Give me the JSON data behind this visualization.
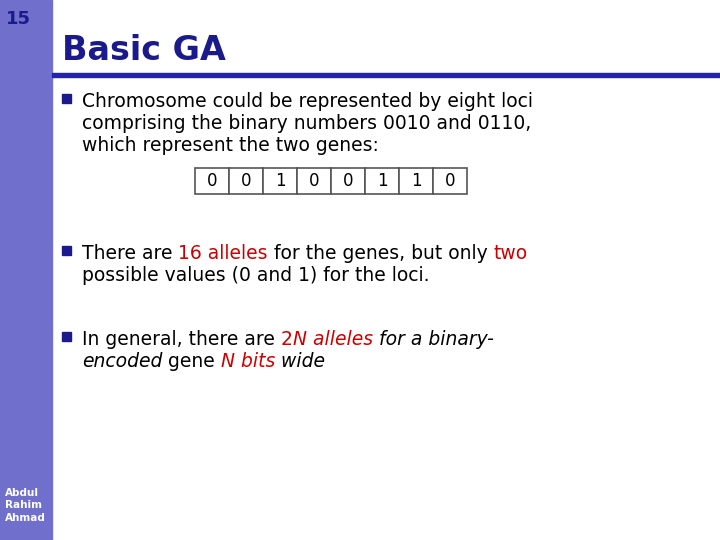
{
  "slide_number": "15",
  "title": "Basic GA",
  "bg_color": "#ffffff",
  "left_panel_color": "#7070cc",
  "title_color": "#1a1a8c",
  "title_underline_color": "#2222aa",
  "bullet_color": "#1a1a8c",
  "text_color": "#000000",
  "red_color": "#cc0000",
  "footer_text_color": "#1a1a8c",
  "footer_text": "Abdul\nRahim\nAhmad",
  "slide_num_color": "#1a1a8c",
  "bullet1_line1": "Chromosome could be represented by eight loci",
  "bullet1_line2": "comprising the binary numbers 0010 and 0110,",
  "bullet1_line3": "which represent the two genes:",
  "chromosome_cells": [
    "0",
    "0",
    "1",
    "0",
    "0",
    "1",
    "1",
    "0"
  ],
  "bullet2_parts_line1": [
    {
      "text": "There are ",
      "color": "#000000",
      "italic": false
    },
    {
      "text": "16 alleles",
      "color": "#cc0000",
      "italic": false
    },
    {
      "text": " for the genes, but only ",
      "color": "#000000",
      "italic": false
    },
    {
      "text": "two",
      "color": "#cc0000",
      "italic": false
    }
  ],
  "bullet2_line2": "possible values (0 and 1) for the loci.",
  "bullet3_parts_line1": [
    {
      "text": "In general, there are ",
      "color": "#000000",
      "italic": false
    },
    {
      "text": "2",
      "color": "#cc0000",
      "italic": false
    },
    {
      "text": "N alleles",
      "color": "#cc0000",
      "italic": true
    },
    {
      "text": " for a binary-",
      "color": "#000000",
      "italic": true
    }
  ],
  "bullet3_parts_line2": [
    {
      "text": "encoded",
      "color": "#000000",
      "italic": true
    },
    {
      "text": " gene ",
      "color": "#000000",
      "italic": false
    },
    {
      "text": "N bits",
      "color": "#cc0000",
      "italic": true
    },
    {
      "text": " wide",
      "color": "#000000",
      "italic": true
    }
  ]
}
